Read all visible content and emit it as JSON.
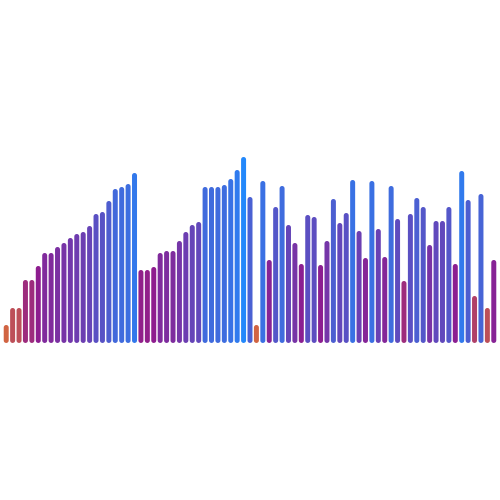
{
  "chart_data": {
    "type": "bar",
    "title": "",
    "xlabel": "",
    "ylabel": "",
    "legend": "none",
    "grid": false,
    "ylim": [
      0,
      190
    ],
    "values": [
      18,
      35,
      35,
      63,
      63,
      77,
      90,
      90,
      96,
      100,
      105,
      109,
      111,
      117,
      129,
      131,
      142,
      154,
      156,
      159,
      170,
      73,
      73,
      76,
      90,
      92,
      92,
      102,
      111,
      118,
      121,
      156,
      156,
      156,
      158,
      164,
      173,
      186,
      146,
      18,
      162,
      83,
      136,
      157,
      118,
      100,
      79,
      128,
      126,
      78,
      102,
      144,
      120,
      130,
      163,
      112,
      85,
      162,
      114,
      86,
      157,
      124,
      62,
      129,
      145,
      136,
      98,
      122,
      122,
      136,
      79,
      172,
      143,
      47,
      149,
      35,
      83
    ],
    "colors": {
      "low": "#e67a2a",
      "mid": "#8e1c8e",
      "high": "#1f8cff"
    }
  }
}
